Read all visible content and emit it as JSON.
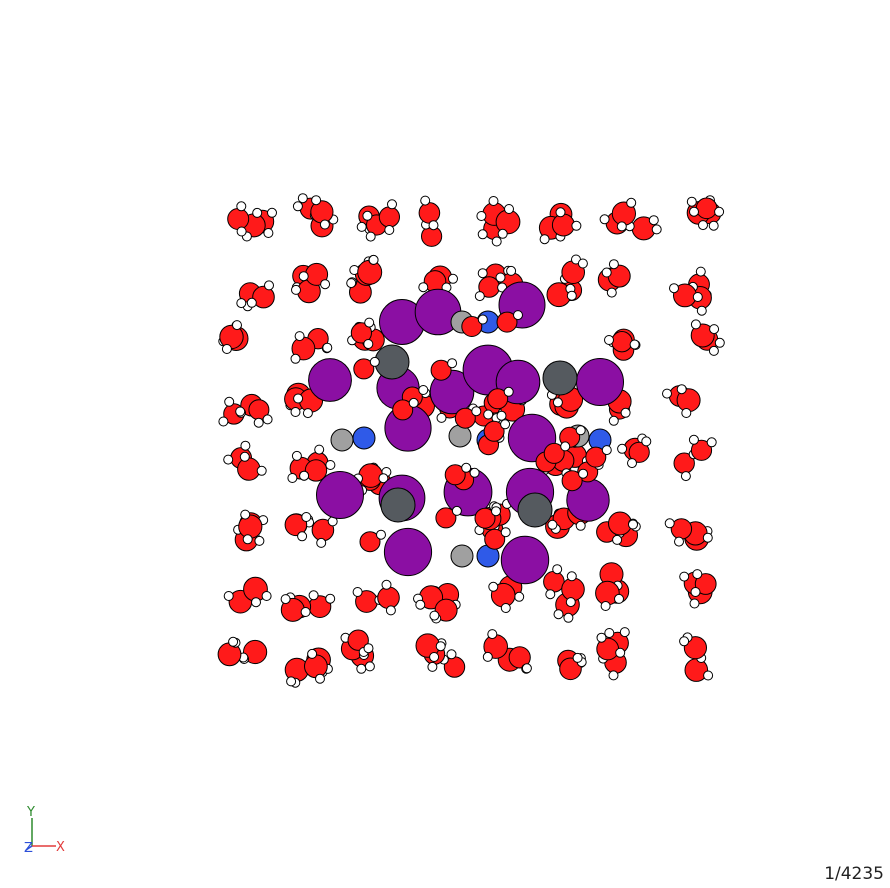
{
  "viewer": {
    "frame_counter": "1/4235",
    "background_color": "#ffffff"
  },
  "axes": {
    "x_label": "X",
    "y_label": "Y",
    "z_label": "Z",
    "x_color": "#e23b3b",
    "y_color": "#2e8b2e",
    "z_color": "#2c4fd9"
  },
  "atom_colors": {
    "oxygen": "#ff1a1a",
    "hydrogen": "#ffffff",
    "purple": "#8b0fa3",
    "carbon": "#555a5f",
    "light_carbon": "#a0a0a0",
    "nitrogen": "#2f5ae8"
  }
}
